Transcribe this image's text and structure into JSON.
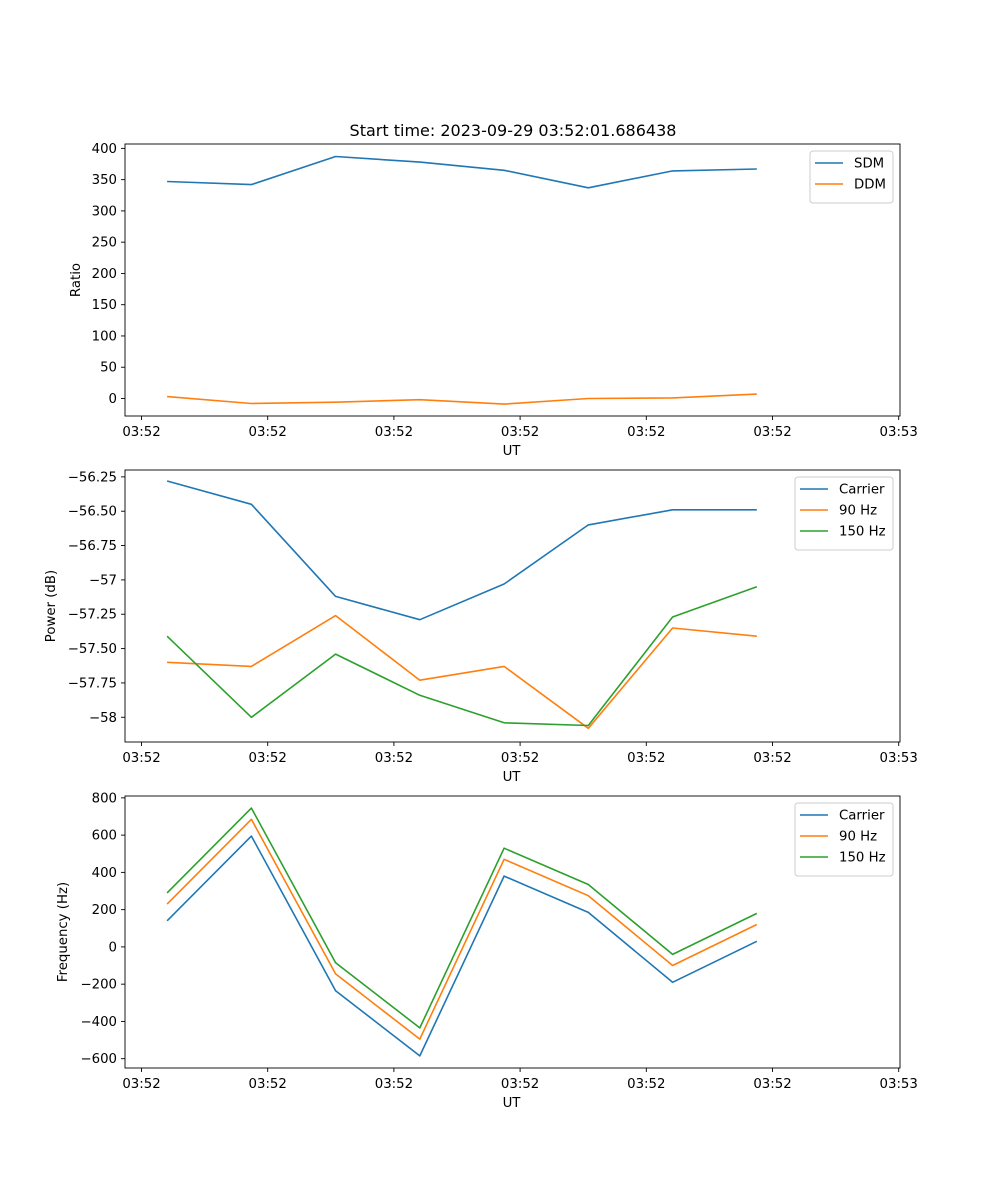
{
  "figure": {
    "title": "Start time: 2023-09-29 03:52:01.686438"
  },
  "chart_data": [
    {
      "type": "line",
      "xlabel": "UT",
      "ylabel": "Ratio",
      "x_tick_labels": [
        "03:52",
        "03:52",
        "03:52",
        "03:52",
        "03:52",
        "03:52",
        "03:53"
      ],
      "x": [
        0,
        1,
        2,
        3,
        4,
        5,
        6,
        7
      ],
      "xlim": [
        -0.5,
        8.7
      ],
      "ylim": [
        -28,
        407
      ],
      "yticks": [
        0,
        50,
        100,
        150,
        200,
        250,
        300,
        350,
        400
      ],
      "legend": "top-right",
      "series": [
        {
          "name": "SDM",
          "color": "#1f77b4",
          "values": [
            347,
            342,
            387,
            378,
            365,
            337,
            364,
            367
          ]
        },
        {
          "name": "DDM",
          "color": "#ff7f0e",
          "values": [
            3,
            -8,
            -6,
            -2,
            -9,
            0,
            1,
            7
          ]
        }
      ]
    },
    {
      "type": "line",
      "xlabel": "UT",
      "ylabel": "Power (dB)",
      "x_tick_labels": [
        "03:52",
        "03:52",
        "03:52",
        "03:52",
        "03:52",
        "03:52",
        "03:53"
      ],
      "x": [
        0,
        1,
        2,
        3,
        4,
        5,
        6,
        7
      ],
      "xlim": [
        -0.5,
        8.7
      ],
      "ylim": [
        -58.18,
        -56.2
      ],
      "yticks": [
        -58.0,
        -57.75,
        -57.5,
        -57.25,
        -57.0,
        -56.75,
        -56.5,
        -56.25
      ],
      "legend": "top-right",
      "series": [
        {
          "name": "Carrier",
          "color": "#1f77b4",
          "values": [
            -56.28,
            -56.45,
            -57.12,
            -57.29,
            -57.03,
            -56.6,
            -56.49,
            -56.49
          ]
        },
        {
          "name": "90 Hz",
          "color": "#ff7f0e",
          "values": [
            -57.6,
            -57.63,
            -57.26,
            -57.73,
            -57.63,
            -58.08,
            -57.35,
            -57.41
          ]
        },
        {
          "name": "150 Hz",
          "color": "#2ca02c",
          "values": [
            -57.41,
            -58.0,
            -57.54,
            -57.84,
            -58.04,
            -58.06,
            -57.27,
            -57.05
          ]
        }
      ]
    },
    {
      "type": "line",
      "xlabel": "UT",
      "ylabel": "Frequency (Hz)",
      "x_tick_labels": [
        "03:52",
        "03:52",
        "03:52",
        "03:52",
        "03:52",
        "03:52",
        "03:53"
      ],
      "x": [
        0,
        1,
        2,
        3,
        4,
        5,
        6,
        7
      ],
      "xlim": [
        -0.5,
        8.7
      ],
      "ylim": [
        -650,
        810
      ],
      "yticks": [
        -600,
        -400,
        -200,
        0,
        200,
        400,
        600,
        800
      ],
      "legend": "top-right",
      "series": [
        {
          "name": "Carrier",
          "color": "#1f77b4",
          "values": [
            140,
            595,
            -235,
            -585,
            380,
            185,
            -190,
            30
          ]
        },
        {
          "name": "90 Hz",
          "color": "#ff7f0e",
          "values": [
            230,
            685,
            -145,
            -495,
            470,
            275,
            -100,
            120
          ]
        },
        {
          "name": "150 Hz",
          "color": "#2ca02c",
          "values": [
            290,
            745,
            -85,
            -435,
            530,
            335,
            -40,
            180
          ]
        }
      ]
    }
  ]
}
